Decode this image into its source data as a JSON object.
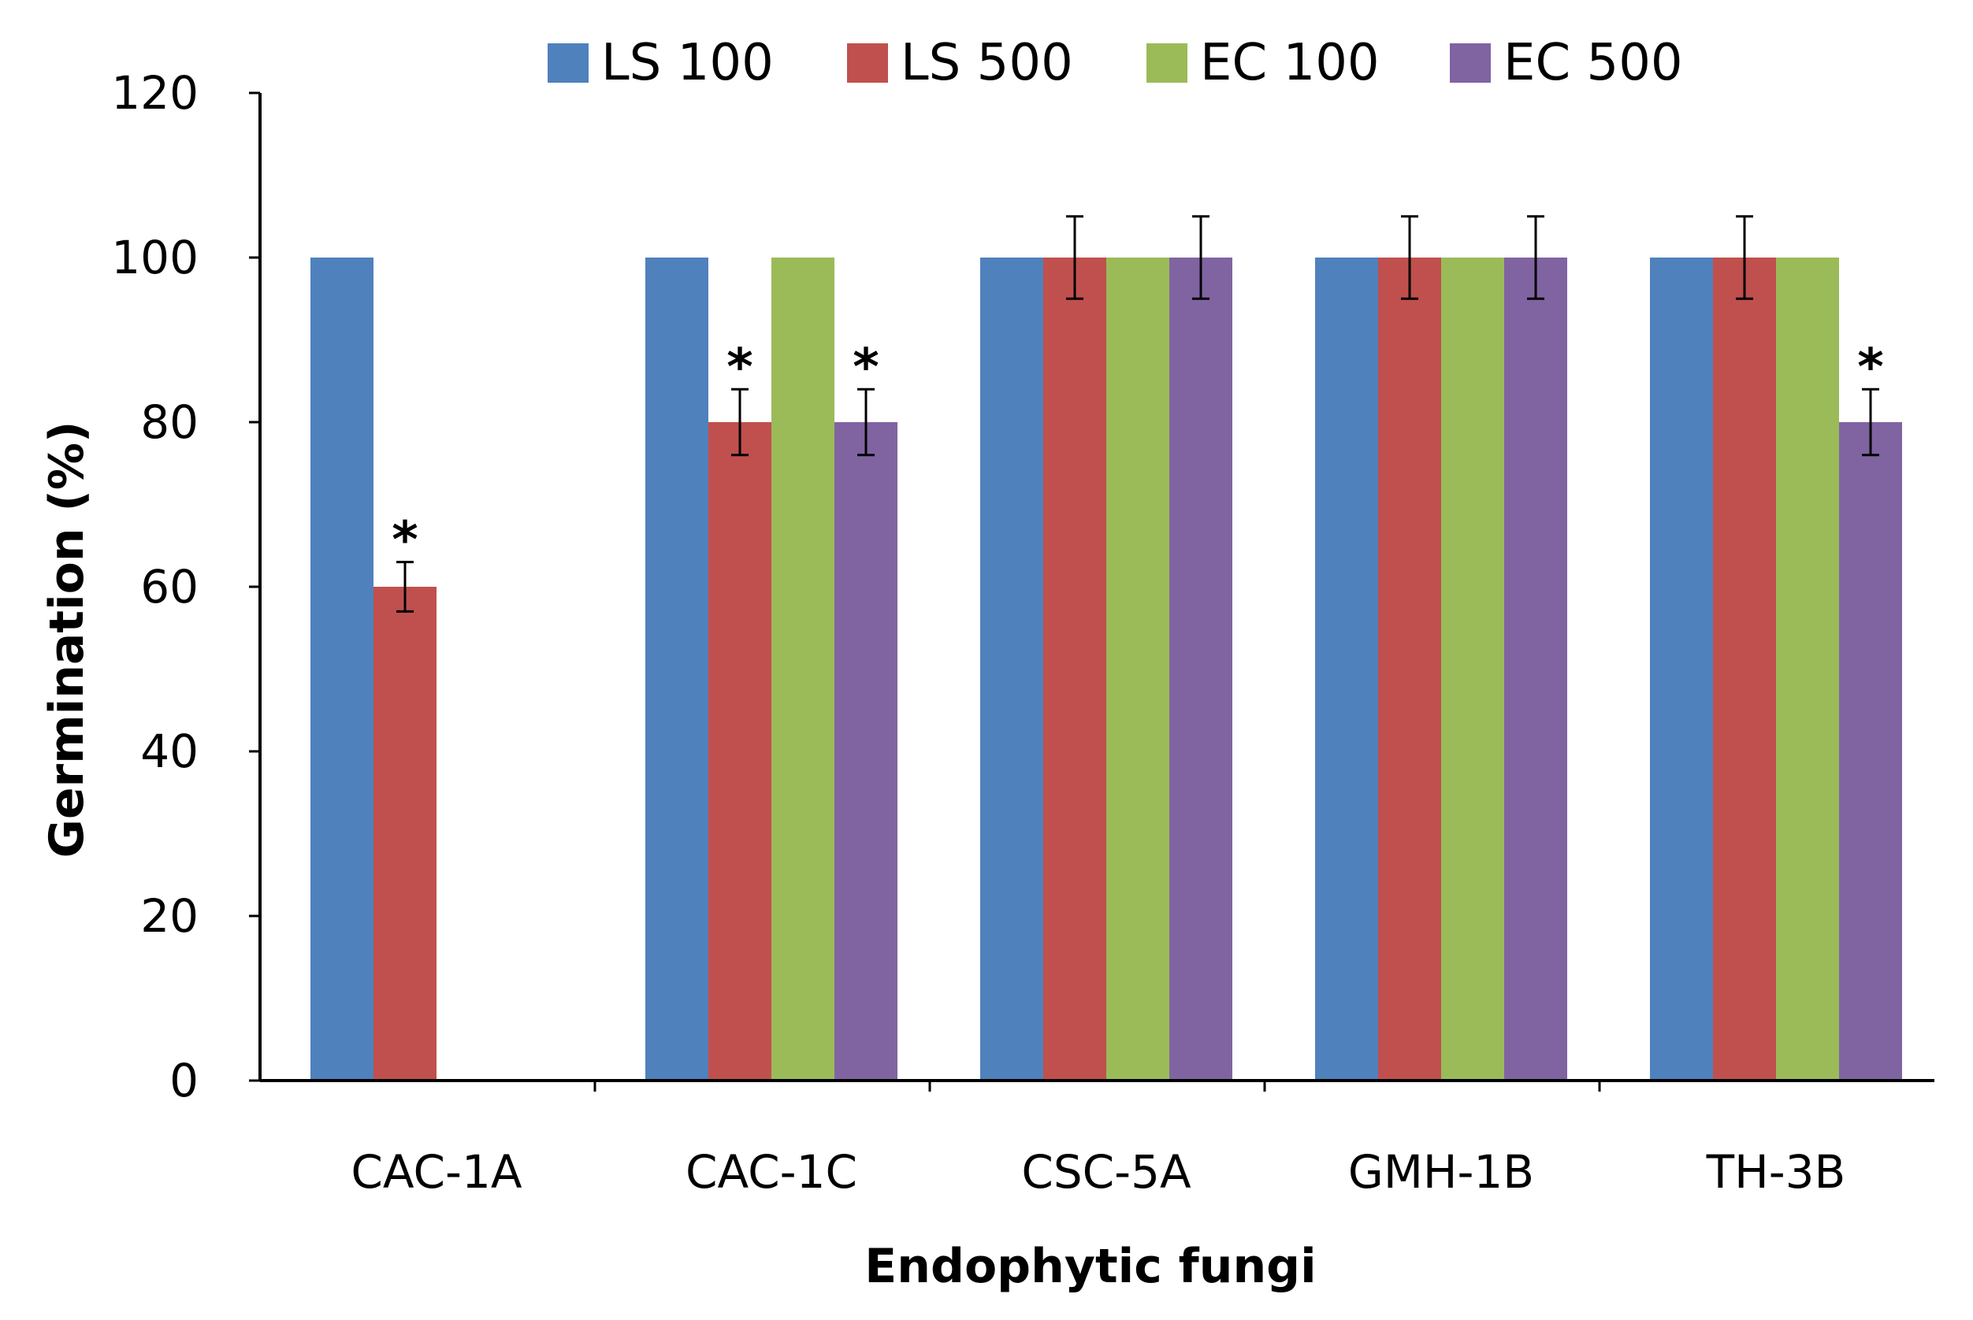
{
  "chart_data": {
    "type": "bar",
    "title": "",
    "xlabel": "Endophytic fungi",
    "ylabel": "Germination (%)",
    "ylim": [
      0,
      120
    ],
    "yticks": [
      "0",
      "20",
      "40",
      "60",
      "80",
      "100",
      "120"
    ],
    "categories": [
      "CAC-1A",
      "CAC-1C",
      "CSC-5A",
      "GMH-1B",
      "TH-3B"
    ],
    "series": [
      {
        "name": "LS 100",
        "color": "#4F81BD",
        "values": [
          100,
          100,
          100,
          100,
          100
        ],
        "errors": [
          0,
          0,
          0,
          0,
          0
        ],
        "significant": [
          false,
          false,
          false,
          false,
          false
        ]
      },
      {
        "name": "LS 500",
        "color": "#C0504D",
        "values": [
          60,
          80,
          100,
          100,
          100
        ],
        "errors": [
          3,
          4,
          5,
          5,
          5
        ],
        "significant": [
          true,
          true,
          false,
          false,
          false
        ]
      },
      {
        "name": "EC 100",
        "color": "#9BBB59",
        "values": [
          0,
          100,
          100,
          100,
          100
        ],
        "errors": [
          0,
          0,
          0,
          0,
          0
        ],
        "significant": [
          false,
          false,
          false,
          false,
          false
        ]
      },
      {
        "name": "EC 500",
        "color": "#8064A2",
        "values": [
          0,
          80,
          100,
          100,
          80
        ],
        "errors": [
          0,
          4,
          5,
          5,
          4
        ],
        "significant": [
          false,
          true,
          false,
          false,
          true
        ]
      }
    ],
    "significance_marker": "*",
    "legend_position": "top",
    "grid": false
  }
}
